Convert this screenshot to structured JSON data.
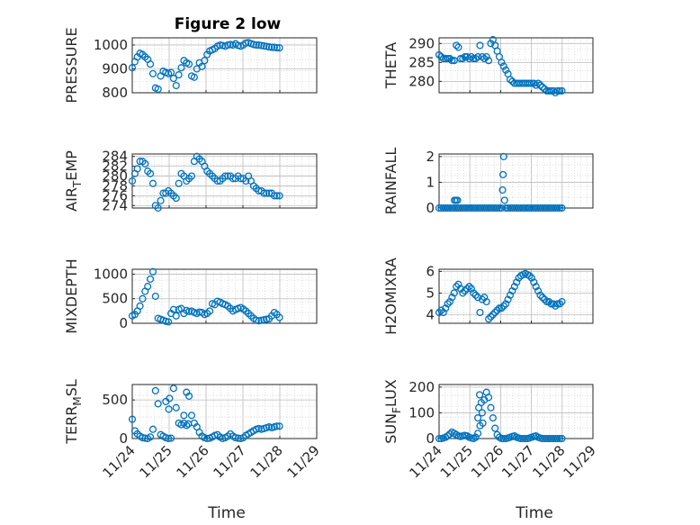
{
  "figure": {
    "title": "Figure 2 low",
    "xlabel": "Time",
    "x_ticks": [
      "11/24",
      "11/25",
      "11/26",
      "11/27",
      "11/28",
      "11/29"
    ],
    "marker_color": "#0072BD"
  },
  "chart_data": [
    {
      "type": "scatter",
      "marker": "circle",
      "ylabel": "PRESSURE",
      "ylabel_sub": "",
      "xlim": [
        "11/24",
        "11/29"
      ],
      "ylim": [
        800,
        1030
      ],
      "yticks": [
        800,
        900,
        1000
      ],
      "x": [
        0.0,
        0.07,
        0.14,
        0.21,
        0.28,
        0.35,
        0.42,
        0.49,
        0.56,
        0.63,
        0.7,
        0.77,
        0.84,
        0.91,
        0.98,
        1.05,
        1.12,
        1.19,
        1.26,
        1.33,
        1.4,
        1.47,
        1.54,
        1.61,
        1.68,
        1.75,
        1.82,
        1.89,
        1.96,
        2.03,
        2.1,
        2.17,
        2.24,
        2.31,
        2.38,
        2.45,
        2.52,
        2.59,
        2.66,
        2.73,
        2.8,
        2.87,
        2.94,
        3.01,
        3.08,
        3.15,
        3.22,
        3.29,
        3.36,
        3.43,
        3.5,
        3.57,
        3.64,
        3.71,
        3.78,
        3.85,
        3.92,
        3.99
      ],
      "y": [
        905,
        930,
        950,
        965,
        960,
        950,
        940,
        920,
        880,
        820,
        815,
        870,
        890,
        885,
        880,
        885,
        860,
        830,
        875,
        905,
        935,
        925,
        920,
        870,
        865,
        900,
        925,
        910,
        935,
        960,
        975,
        980,
        985,
        995,
        1000,
        998,
        995,
        1000,
        1002,
        1000,
        1005,
        998,
        995,
        1000,
        1008,
        1010,
        1006,
        1002,
        1000,
        1000,
        998,
        996,
        994,
        992,
        990,
        990,
        988,
        988
      ]
    },
    {
      "type": "scatter",
      "marker": "circle",
      "ylabel": "THETA",
      "ylabel_sub": "",
      "xlim": [
        "11/24",
        "11/29"
      ],
      "ylim": [
        277,
        291.5
      ],
      "yticks": [
        280,
        285,
        290
      ],
      "x": [
        0.0,
        0.07,
        0.14,
        0.21,
        0.28,
        0.35,
        0.42,
        0.49,
        0.56,
        0.63,
        0.7,
        0.77,
        0.84,
        0.91,
        0.98,
        1.05,
        1.12,
        1.19,
        1.26,
        1.33,
        1.4,
        1.47,
        1.54,
        1.61,
        1.68,
        1.75,
        1.82,
        1.89,
        1.96,
        2.03,
        2.1,
        2.17,
        2.24,
        2.31,
        2.38,
        2.45,
        2.52,
        2.59,
        2.66,
        2.73,
        2.8,
        2.87,
        2.94,
        3.01,
        3.08,
        3.15,
        3.22,
        3.29,
        3.36,
        3.43,
        3.5,
        3.57,
        3.64,
        3.71,
        3.78,
        3.85,
        3.92,
        3.99
      ],
      "y": [
        287,
        286.5,
        286,
        286,
        286,
        286,
        285.5,
        285.5,
        289.5,
        289,
        286,
        286,
        286.5,
        286.5,
        286,
        286.5,
        286,
        286,
        286.5,
        289.5,
        286.5,
        286,
        286.5,
        285.5,
        290,
        291,
        289.5,
        288,
        286.5,
        285,
        284,
        283,
        282,
        280.5,
        280,
        279.5,
        279.5,
        279.5,
        279.5,
        279.5,
        279.5,
        279.5,
        279.5,
        279.5,
        279.5,
        279,
        279.5,
        279,
        278.5,
        278,
        277.5,
        277.5,
        277.5,
        277.5,
        277,
        277.5,
        277.5,
        277.5
      ]
    },
    {
      "type": "scatter",
      "marker": "circle",
      "ylabel": "AIR",
      "ylabel_sub": "T",
      "ylabel_rest": "EMP",
      "xlim": [
        "11/24",
        "11/29"
      ],
      "ylim": [
        273.5,
        284.5
      ],
      "yticks": [
        274,
        276,
        278,
        280,
        282,
        284
      ],
      "x": [
        0.0,
        0.07,
        0.14,
        0.21,
        0.28,
        0.35,
        0.42,
        0.49,
        0.56,
        0.63,
        0.7,
        0.77,
        0.84,
        0.91,
        0.98,
        1.05,
        1.12,
        1.19,
        1.26,
        1.33,
        1.4,
        1.47,
        1.54,
        1.61,
        1.68,
        1.75,
        1.82,
        1.89,
        1.96,
        2.03,
        2.1,
        2.17,
        2.24,
        2.31,
        2.38,
        2.45,
        2.52,
        2.59,
        2.66,
        2.73,
        2.8,
        2.87,
        2.94,
        3.01,
        3.08,
        3.15,
        3.22,
        3.29,
        3.36,
        3.43,
        3.5,
        3.57,
        3.64,
        3.71,
        3.78,
        3.85,
        3.92,
        3.99
      ],
      "y": [
        279,
        280.5,
        281.5,
        283,
        283,
        282.5,
        281,
        280.5,
        278.5,
        274,
        273.5,
        275,
        276.5,
        276.5,
        277,
        276.5,
        276,
        275.5,
        278.5,
        280.5,
        280,
        279,
        279.5,
        280,
        283,
        284,
        283.5,
        283,
        282,
        281,
        280.5,
        280,
        279.5,
        279,
        279,
        279.5,
        280,
        280,
        280,
        279.5,
        279.5,
        280,
        279.5,
        279.5,
        279,
        280,
        279,
        278,
        277.5,
        277,
        277,
        276.5,
        276.5,
        276.5,
        276.5,
        276,
        276,
        276
      ]
    },
    {
      "type": "scatter",
      "marker": "circle",
      "ylabel": "RAINFALL",
      "ylabel_sub": "",
      "xlim": [
        "11/24",
        "11/29"
      ],
      "ylim": [
        0,
        2.1
      ],
      "yticks": [
        0,
        1,
        2
      ],
      "x": [
        0.0,
        0.07,
        0.14,
        0.21,
        0.28,
        0.35,
        0.42,
        0.49,
        0.56,
        0.63,
        0.7,
        0.77,
        0.84,
        0.91,
        0.98,
        1.05,
        1.12,
        1.19,
        1.26,
        1.33,
        1.4,
        1.47,
        1.54,
        1.61,
        1.68,
        1.75,
        1.82,
        1.89,
        1.96,
        2.03,
        2.06,
        2.08,
        2.1,
        2.13,
        2.17,
        2.24,
        2.31,
        2.38,
        2.45,
        2.52,
        2.59,
        2.66,
        2.73,
        2.8,
        2.87,
        2.94,
        3.01,
        3.08,
        3.15,
        3.22,
        3.29,
        3.36,
        3.43,
        3.5,
        3.57,
        3.64,
        3.71,
        3.78,
        3.85,
        3.92,
        3.99,
        0.5,
        0.55,
        0.6
      ],
      "y": [
        0,
        0,
        0,
        0,
        0,
        0,
        0,
        0,
        0,
        0,
        0,
        0,
        0,
        0,
        0,
        0,
        0,
        0,
        0,
        0,
        0,
        0,
        0,
        0,
        0,
        0,
        0,
        0,
        0,
        0,
        0.7,
        1.3,
        2.0,
        0.3,
        0,
        0,
        0,
        0,
        0,
        0,
        0,
        0,
        0,
        0,
        0,
        0,
        0,
        0,
        0,
        0,
        0,
        0,
        0,
        0,
        0,
        0,
        0,
        0,
        0,
        0,
        0,
        0.3,
        0.3,
        0.3
      ]
    },
    {
      "type": "scatter",
      "marker": "circle",
      "ylabel": "MIXDEPTH",
      "ylabel_sub": "",
      "xlim": [
        "11/24",
        "11/29"
      ],
      "ylim": [
        0,
        1100
      ],
      "yticks": [
        0,
        500,
        1000
      ],
      "x": [
        0.0,
        0.07,
        0.14,
        0.21,
        0.28,
        0.35,
        0.42,
        0.49,
        0.56,
        0.63,
        0.7,
        0.77,
        0.84,
        0.91,
        0.98,
        1.05,
        1.12,
        1.19,
        1.26,
        1.33,
        1.4,
        1.47,
        1.54,
        1.61,
        1.68,
        1.75,
        1.82,
        1.89,
        1.96,
        2.03,
        2.1,
        2.17,
        2.24,
        2.31,
        2.38,
        2.45,
        2.52,
        2.59,
        2.66,
        2.73,
        2.8,
        2.87,
        2.94,
        3.01,
        3.08,
        3.15,
        3.22,
        3.29,
        3.36,
        3.43,
        3.5,
        3.57,
        3.64,
        3.71,
        3.78,
        3.85,
        3.92,
        3.99
      ],
      "y": [
        150,
        180,
        250,
        350,
        500,
        650,
        750,
        900,
        1050,
        550,
        100,
        80,
        60,
        40,
        30,
        200,
        280,
        150,
        280,
        300,
        200,
        260,
        240,
        250,
        220,
        200,
        230,
        220,
        180,
        200,
        250,
        400,
        380,
        450,
        430,
        400,
        380,
        350,
        300,
        250,
        280,
        300,
        320,
        290,
        250,
        200,
        150,
        100,
        60,
        50,
        60,
        70,
        80,
        90,
        150,
        220,
        180,
        120
      ]
    },
    {
      "type": "scatter",
      "marker": "circle",
      "ylabel": "H2OMIXRA",
      "ylabel_sub": "",
      "xlim": [
        "11/24",
        "11/29"
      ],
      "ylim": [
        3.6,
        6.1
      ],
      "yticks": [
        4,
        5,
        6
      ],
      "x": [
        0.0,
        0.07,
        0.14,
        0.21,
        0.28,
        0.35,
        0.42,
        0.49,
        0.56,
        0.63,
        0.7,
        0.77,
        0.84,
        0.91,
        0.98,
        1.05,
        1.12,
        1.19,
        1.26,
        1.33,
        1.4,
        1.47,
        1.54,
        1.61,
        1.68,
        1.75,
        1.82,
        1.89,
        1.96,
        2.03,
        2.1,
        2.17,
        2.24,
        2.31,
        2.38,
        2.45,
        2.52,
        2.59,
        2.66,
        2.73,
        2.8,
        2.87,
        2.94,
        3.01,
        3.08,
        3.15,
        3.22,
        3.29,
        3.36,
        3.43,
        3.5,
        3.57,
        3.64,
        3.71,
        3.78,
        3.85,
        3.92,
        3.99
      ],
      "y": [
        4.1,
        4.2,
        4.1,
        4.3,
        4.5,
        4.6,
        4.8,
        5.0,
        5.3,
        5.4,
        5.2,
        5.0,
        5.1,
        5.2,
        5.3,
        5.2,
        5.0,
        4.9,
        4.8,
        4.1,
        4.7,
        4.8,
        4.6,
        3.8,
        3.9,
        4.0,
        4.1,
        4.2,
        4.3,
        4.3,
        4.4,
        4.5,
        4.7,
        4.9,
        5.1,
        5.3,
        5.5,
        5.7,
        5.8,
        5.85,
        5.9,
        5.85,
        5.8,
        5.7,
        5.5,
        5.3,
        5.1,
        4.9,
        4.8,
        4.7,
        4.6,
        4.6,
        4.5,
        4.5,
        4.4,
        4.5,
        4.5,
        4.6
      ]
    },
    {
      "type": "scatter",
      "marker": "circle",
      "ylabel": "TERR",
      "ylabel_sub": "M",
      "ylabel_rest": "SL",
      "xlim": [
        "11/24",
        "11/29"
      ],
      "ylim": [
        0,
        700
      ],
      "yticks": [
        0,
        500
      ],
      "x": [
        0.0,
        0.07,
        0.14,
        0.21,
        0.28,
        0.35,
        0.42,
        0.49,
        0.56,
        0.63,
        0.7,
        0.77,
        0.84,
        0.91,
        0.98,
        1.05,
        1.12,
        1.19,
        1.26,
        1.33,
        1.4,
        1.47,
        1.54,
        1.61,
        1.68,
        1.75,
        1.82,
        1.89,
        1.96,
        2.03,
        2.1,
        2.17,
        2.24,
        2.31,
        2.38,
        2.45,
        2.52,
        2.59,
        2.66,
        2.73,
        2.8,
        2.87,
        2.94,
        3.01,
        3.08,
        3.15,
        3.22,
        3.29,
        3.36,
        3.43,
        3.5,
        3.57,
        3.64,
        3.71,
        3.78,
        3.85,
        3.92,
        3.99,
        0.91,
        1.01,
        1.4,
        1.47,
        0.99,
        1.52
      ],
      "y": [
        250,
        100,
        60,
        30,
        10,
        5,
        0,
        20,
        120,
        620,
        450,
        50,
        30,
        10,
        0,
        5,
        650,
        400,
        200,
        180,
        200,
        600,
        550,
        300,
        200,
        150,
        80,
        30,
        10,
        0,
        5,
        20,
        40,
        50,
        20,
        0,
        10,
        30,
        60,
        30,
        10,
        5,
        0,
        10,
        40,
        60,
        80,
        100,
        120,
        130,
        120,
        130,
        140,
        150,
        140,
        150,
        160,
        160,
        480,
        520,
        300,
        170,
        380,
        190
      ]
    },
    {
      "type": "scatter",
      "marker": "circle",
      "ylabel": "SUN",
      "ylabel_sub": "F",
      "ylabel_rest": "LUX",
      "xlim": [
        "11/24",
        "11/29"
      ],
      "ylim": [
        0,
        210
      ],
      "yticks": [
        0,
        100,
        200
      ],
      "x": [
        0.0,
        0.07,
        0.14,
        0.21,
        0.28,
        0.35,
        0.42,
        0.49,
        0.56,
        0.63,
        0.7,
        0.77,
        0.84,
        0.91,
        0.98,
        1.05,
        1.12,
        1.19,
        1.26,
        1.33,
        1.4,
        1.47,
        1.54,
        1.61,
        1.68,
        1.75,
        1.82,
        1.89,
        1.96,
        2.03,
        2.1,
        2.17,
        2.24,
        2.31,
        2.38,
        2.45,
        2.52,
        2.59,
        2.66,
        2.73,
        2.8,
        2.87,
        2.94,
        3.01,
        3.08,
        3.15,
        3.22,
        3.29,
        3.36,
        3.43,
        3.5,
        3.57,
        3.64,
        3.71,
        3.78,
        3.85,
        3.92,
        3.99,
        1.26,
        1.29,
        1.32,
        1.37,
        1.42
      ],
      "y": [
        0,
        0,
        2,
        5,
        10,
        18,
        25,
        20,
        15,
        10,
        8,
        10,
        12,
        10,
        5,
        2,
        0,
        5,
        20,
        50,
        100,
        150,
        180,
        160,
        120,
        80,
        40,
        15,
        5,
        0,
        0,
        0,
        2,
        5,
        8,
        10,
        5,
        2,
        0,
        0,
        0,
        0,
        2,
        5,
        8,
        10,
        5,
        2,
        0,
        0,
        0,
        0,
        0,
        0,
        0,
        0,
        0,
        0,
        80,
        120,
        170,
        140,
        60
      ]
    }
  ]
}
